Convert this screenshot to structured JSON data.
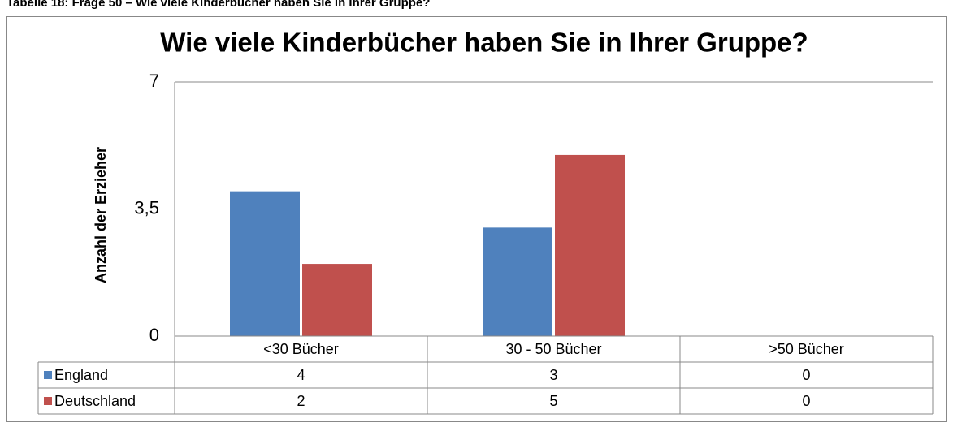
{
  "caption": "Tabelle 18: Frage 50 – Wie viele Kinderbücher haben Sie in Ihrer Gruppe?",
  "chart_data": {
    "type": "bar",
    "title": "Wie viele Kinderbücher haben Sie in Ihrer Gruppe?",
    "y_label": "Anzahl der Erzieher",
    "categories": [
      "<30 Bücher",
      "30 - 50 Bücher",
      ">50 Bücher"
    ],
    "series": [
      {
        "name": "England",
        "color": "#4f81bd",
        "values": [
          4,
          3,
          0
        ]
      },
      {
        "name": "Deutschland",
        "color": "#c0504d",
        "values": [
          2,
          5,
          0
        ]
      }
    ],
    "ylim": [
      0,
      7
    ],
    "yticks": [
      0,
      {
        "value": 3.5,
        "label": "3,5"
      },
      7
    ],
    "grid": true,
    "legend": "table"
  }
}
